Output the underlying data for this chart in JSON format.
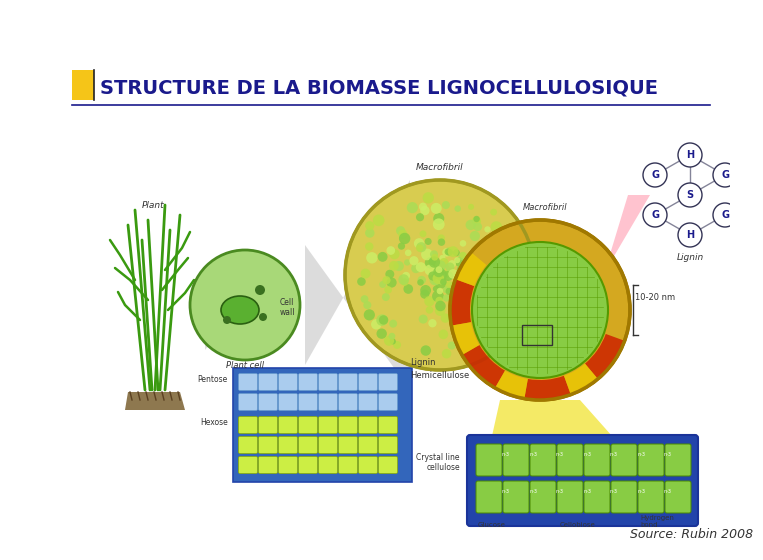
{
  "title": "STRUCTURE DE LA BIOMASSE LIGNOCELLULOSIQUE",
  "title_color": "#1a1a8c",
  "title_fontsize": 14,
  "title_fontweight": "bold",
  "source_text": "Source: Rubin 2008",
  "source_fontsize": 9,
  "source_color": "#333333",
  "background_color": "#ffffff",
  "accent_square_color": "#f5c518",
  "accent_line_color": "#222222",
  "divider_color": "#1a1a8c",
  "grass_color": "#3a9a10",
  "cell_fill": "#c8e6a0",
  "cell_edge": "#5a9a30",
  "macrofibril_fill": "#d4c860",
  "macrofibril_edge": "#8a8a00",
  "microfibril_fill_outer": "#d4a020",
  "microfibril_fill_inner": "#88cc44",
  "microfibril_red": "#cc3300",
  "microfibril_yellow": "#e8c000",
  "blue_box": "#3366bb",
  "green_unit": "#88cc44",
  "text_dark": "#333333",
  "text_italic_color": "#444444",
  "pink_fan_color": "#ffaacc",
  "yellow_fan_color": "#eecc00",
  "gray_fan_color": "#cccccc"
}
